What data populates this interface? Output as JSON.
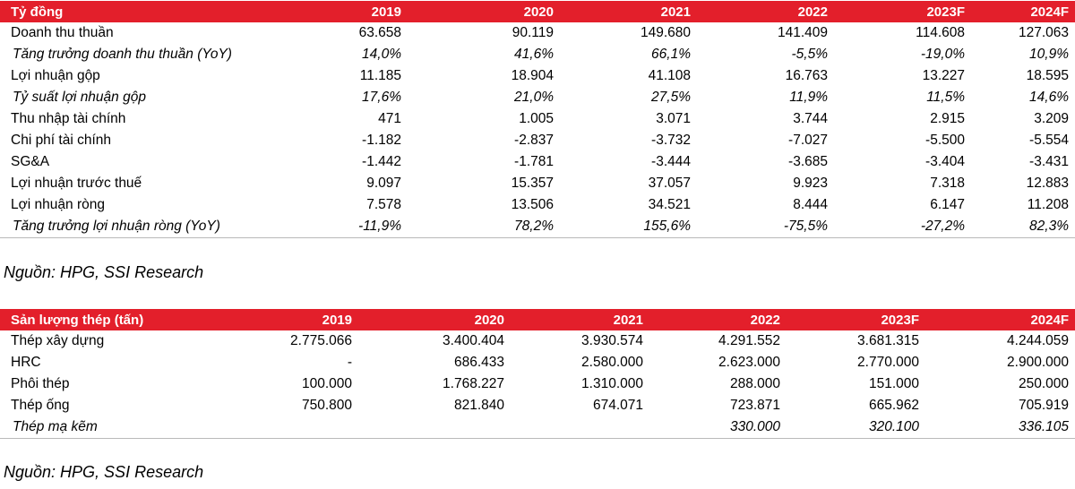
{
  "income": {
    "header": [
      "Tỷ đồng",
      "2019",
      "2020",
      "2021",
      "2022",
      "2023F",
      "2024F"
    ],
    "rows": [
      {
        "label": "Doanh thu thuần",
        "values": [
          "63.658",
          "90.119",
          "149.680",
          "141.409",
          "114.608",
          "127.063"
        ],
        "italic": false
      },
      {
        "label": "Tăng trưởng doanh thu thuần (YoY)",
        "values": [
          "14,0%",
          "41,6%",
          "66,1%",
          "-5,5%",
          "-19,0%",
          "10,9%"
        ],
        "italic": true
      },
      {
        "label": "Lợi nhuận gộp",
        "values": [
          "11.185",
          "18.904",
          "41.108",
          "16.763",
          "13.227",
          "18.595"
        ],
        "italic": false
      },
      {
        "label": "Tỷ suất lợi nhuận gộp",
        "values": [
          "17,6%",
          "21,0%",
          "27,5%",
          "11,9%",
          "11,5%",
          "14,6%"
        ],
        "italic": true
      },
      {
        "label": "Thu nhập tài chính",
        "values": [
          "471",
          "1.005",
          "3.071",
          "3.744",
          "2.915",
          "3.209"
        ],
        "italic": false
      },
      {
        "label": "Chi phí tài chính",
        "values": [
          "-1.182",
          "-2.837",
          "-3.732",
          "-7.027",
          "-5.500",
          "-5.554"
        ],
        "italic": false
      },
      {
        "label": "SG&A",
        "values": [
          "-1.442",
          "-1.781",
          "-3.444",
          "-3.685",
          "-3.404",
          "-3.431"
        ],
        "italic": false
      },
      {
        "label": "Lợi nhuận trước thuế",
        "values": [
          "9.097",
          "15.357",
          "37.057",
          "9.923",
          "7.318",
          "12.883"
        ],
        "italic": false
      },
      {
        "label": "Lợi nhuận ròng",
        "values": [
          "7.578",
          "13.506",
          "34.521",
          "8.444",
          "6.147",
          "11.208"
        ],
        "italic": false
      },
      {
        "label": "Tăng trưởng lợi nhuận ròng (YoY)",
        "values": [
          "-11,9%",
          "78,2%",
          "155,6%",
          "-75,5%",
          "-27,2%",
          "82,3%"
        ],
        "italic": true
      }
    ],
    "source": "Nguồn: HPG, SSI Research"
  },
  "steel": {
    "header": [
      "Sản lượng thép (tấn)",
      "2019",
      "2020",
      "2021",
      "2022",
      "2023F",
      "2024F"
    ],
    "rows": [
      {
        "label": "Thép xây dựng",
        "values": [
          "2.775.066",
          "3.400.404",
          "3.930.574",
          "4.291.552",
          "3.681.315",
          "4.244.059"
        ],
        "italic": false
      },
      {
        "label": "HRC",
        "values": [
          "-",
          "686.433",
          "2.580.000",
          "2.623.000",
          "2.770.000",
          "2.900.000"
        ],
        "italic": false
      },
      {
        "label": "Phôi thép",
        "values": [
          "100.000",
          "1.768.227",
          "1.310.000",
          "288.000",
          "151.000",
          "250.000"
        ],
        "italic": false
      },
      {
        "label": "Thép ống",
        "values": [
          "750.800",
          "821.840",
          "674.071",
          "723.871",
          "665.962",
          "705.919"
        ],
        "italic": false
      },
      {
        "label": "Thép mạ kẽm",
        "values": [
          "",
          "",
          "",
          "330.000",
          "320.100",
          "336.105"
        ],
        "italic": true
      }
    ],
    "source": "Nguồn: HPG, SSI Research"
  },
  "colors": {
    "header_bg": "#e31f2b",
    "header_text": "#ffffff"
  }
}
